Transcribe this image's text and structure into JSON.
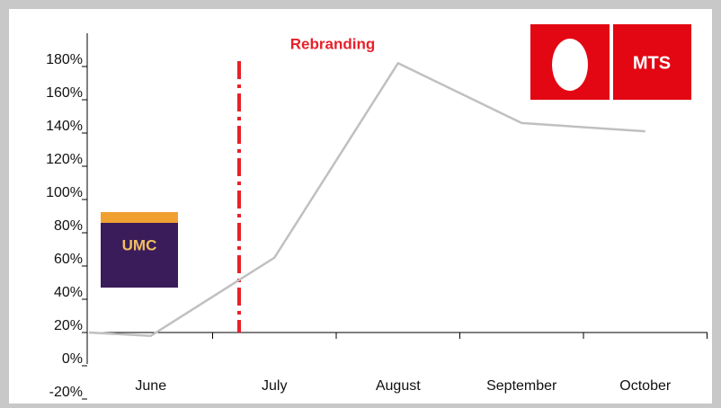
{
  "chart_data": {
    "type": "line",
    "categories": [
      null,
      "June",
      "July",
      "August",
      "September",
      "October"
    ],
    "series": [
      {
        "color": "#c0c0c0",
        "values": [
          20,
          18,
          65,
          182,
          146,
          141
        ]
      }
    ],
    "ylim": [
      -20,
      180
    ],
    "yticks": [
      {
        "value": -20,
        "label": "-20%"
      },
      {
        "value": 0,
        "label": "0%"
      },
      {
        "value": 20,
        "label": "20%"
      },
      {
        "value": 40,
        "label": "40%"
      },
      {
        "value": 60,
        "label": "60%"
      },
      {
        "value": 80,
        "label": "80%"
      },
      {
        "value": 100,
        "label": "100%"
      },
      {
        "value": 120,
        "label": "120%"
      },
      {
        "value": 140,
        "label": "140%"
      },
      {
        "value": 160,
        "label": "160%"
      },
      {
        "value": 180,
        "label": "180%"
      }
    ],
    "annotations": [
      {
        "text": "Rebranding",
        "color": "#e8202a"
      }
    ],
    "logos": [
      "MTS",
      "UMC"
    ]
  }
}
